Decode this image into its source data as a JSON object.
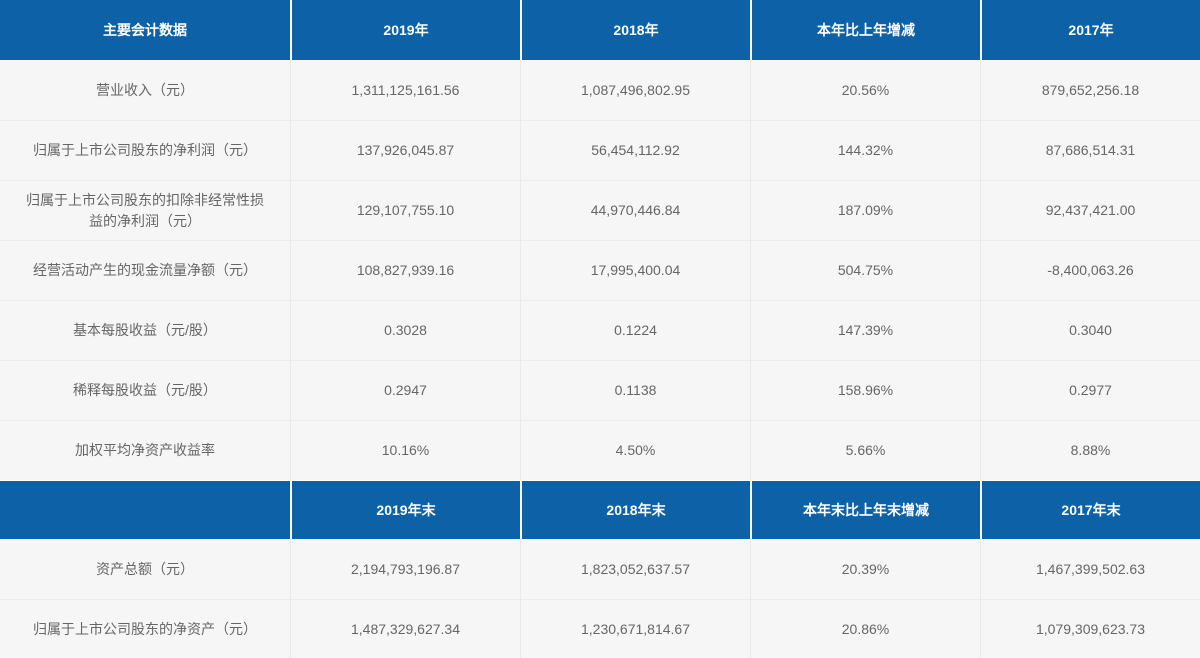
{
  "colors": {
    "header_bg": "#0c61a7",
    "header_text": "#ffffff",
    "body_bg": "#f6f6f6",
    "body_text": "#666666",
    "divider": "#e9e9e9"
  },
  "table": {
    "header1": [
      "主要会计数据",
      "2019年",
      "2018年",
      "本年比上年增减",
      "2017年"
    ],
    "rows1": [
      {
        "label": "营业收入（元）",
        "values": [
          "1,311,125,161.56",
          "1,087,496,802.95",
          "20.56%",
          "879,652,256.18"
        ]
      },
      {
        "label": "归属于上市公司股东的净利润（元）",
        "values": [
          "137,926,045.87",
          "56,454,112.92",
          "144.32%",
          "87,686,514.31"
        ]
      },
      {
        "label": "归属于上市公司股东的扣除非经常性损益的净利润（元）",
        "values": [
          "129,107,755.10",
          "44,970,446.84",
          "187.09%",
          "92,437,421.00"
        ]
      },
      {
        "label": "经营活动产生的现金流量净额（元）",
        "values": [
          "108,827,939.16",
          "17,995,400.04",
          "504.75%",
          "-8,400,063.26"
        ]
      },
      {
        "label": "基本每股收益（元/股）",
        "values": [
          "0.3028",
          "0.1224",
          "147.39%",
          "0.3040"
        ]
      },
      {
        "label": "稀释每股收益（元/股）",
        "values": [
          "0.2947",
          "0.1138",
          "158.96%",
          "0.2977"
        ]
      },
      {
        "label": "加权平均净资产收益率",
        "values": [
          "10.16%",
          "4.50%",
          "5.66%",
          "8.88%"
        ]
      }
    ],
    "header2": [
      "",
      "2019年末",
      "2018年末",
      "本年末比上年末增减",
      "2017年末"
    ],
    "rows2": [
      {
        "label": "资产总额（元）",
        "values": [
          "2,194,793,196.87",
          "1,823,052,637.57",
          "20.39%",
          "1,467,399,502.63"
        ]
      },
      {
        "label": "归属于上市公司股东的净资产（元）",
        "values": [
          "1,487,329,627.34",
          "1,230,671,814.67",
          "20.86%",
          "1,079,309,623.73"
        ]
      }
    ]
  }
}
